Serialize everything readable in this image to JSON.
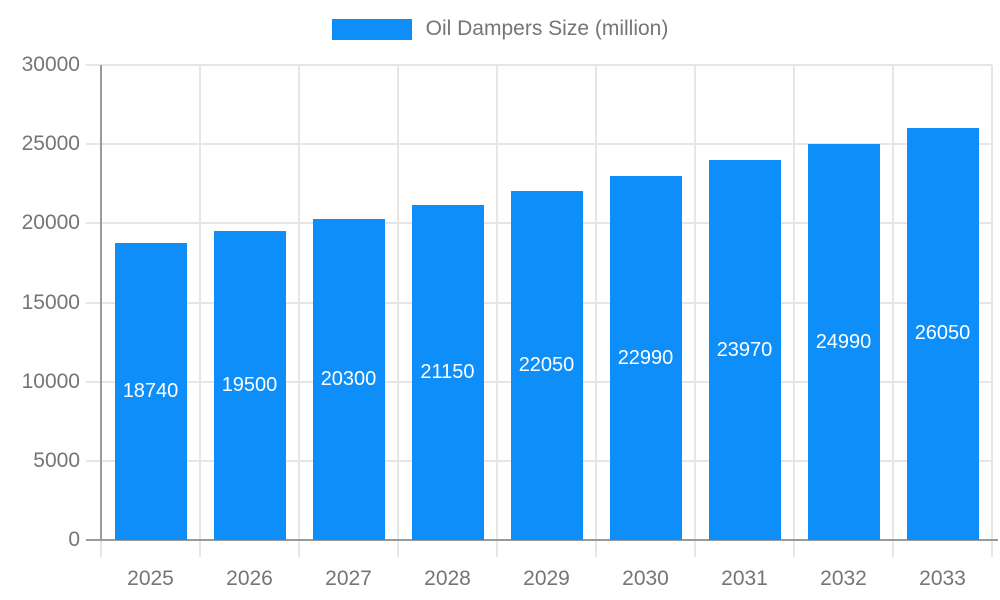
{
  "chart_data": {
    "type": "bar",
    "title": "",
    "legend": "Oil Dampers Size (million)",
    "legend_position": "top-center",
    "categories": [
      "2025",
      "2026",
      "2027",
      "2028",
      "2029",
      "2030",
      "2031",
      "2032",
      "2033"
    ],
    "series": [
      {
        "name": "Oil Dampers Size (million)",
        "values": [
          18740,
          19500,
          20300,
          21150,
          22050,
          22990,
          23970,
          24990,
          26050
        ]
      }
    ],
    "value_labels": [
      "18740",
      "19500",
      "20300",
      "21150",
      "22050",
      "22990",
      "23970",
      "24990",
      "26050"
    ],
    "xlabel": "",
    "ylabel": "",
    "ylim": [
      0,
      30000
    ],
    "yticks": [
      0,
      5000,
      10000,
      15000,
      20000,
      25000,
      30000
    ],
    "grid": "horizontal and vertical, ticks outside axes",
    "colors": {
      "bar": "#0d8ef8",
      "grid": "#e6e6e6",
      "axis": "#9a9a9a",
      "tick_label": "#757575",
      "legend_text": "#757575",
      "value_label": "#ffffff"
    }
  }
}
